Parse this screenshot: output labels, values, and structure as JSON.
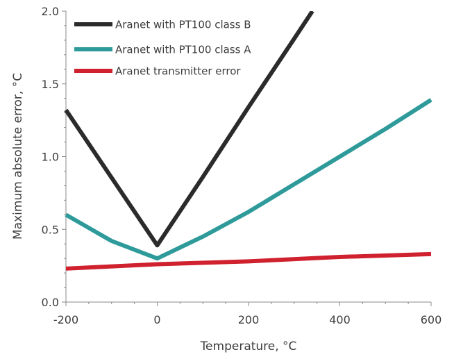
{
  "chart_data": {
    "type": "line",
    "xlabel": "Temperature, °C",
    "ylabel": "Maximum absolute error, °C",
    "xlim": [
      -200,
      600
    ],
    "ylim": [
      0,
      2.0
    ],
    "x_ticks": [
      -200,
      0,
      200,
      400,
      600
    ],
    "x_tick_labels": [
      "-200",
      "0",
      "200",
      "400",
      "600"
    ],
    "y_ticks": [
      0,
      0.5,
      1.0,
      1.5,
      2.0
    ],
    "y_tick_labels": [
      "0.0",
      "0.5",
      "1.0",
      "1.5",
      "2.0"
    ],
    "grid": false,
    "legend_position": "top-left",
    "series": [
      {
        "name": "Aranet with PT100 class B",
        "color": "#2b2b2b",
        "x": [
          -200,
          0,
          100,
          200,
          300,
          340
        ],
        "y": [
          1.32,
          0.39,
          0.86,
          1.34,
          1.81,
          2.0
        ]
      },
      {
        "name": "Aranet with PT100 class A",
        "color": "#2e9a9a",
        "x": [
          -200,
          -100,
          0,
          100,
          200,
          300,
          400,
          500,
          600
        ],
        "y": [
          0.6,
          0.42,
          0.3,
          0.45,
          0.62,
          0.81,
          1.0,
          1.19,
          1.39
        ]
      },
      {
        "name": "Aranet transmitter error",
        "color": "#d0212f",
        "x": [
          -200,
          0,
          200,
          400,
          600
        ],
        "y": [
          0.23,
          0.26,
          0.28,
          0.31,
          0.33
        ]
      }
    ]
  }
}
